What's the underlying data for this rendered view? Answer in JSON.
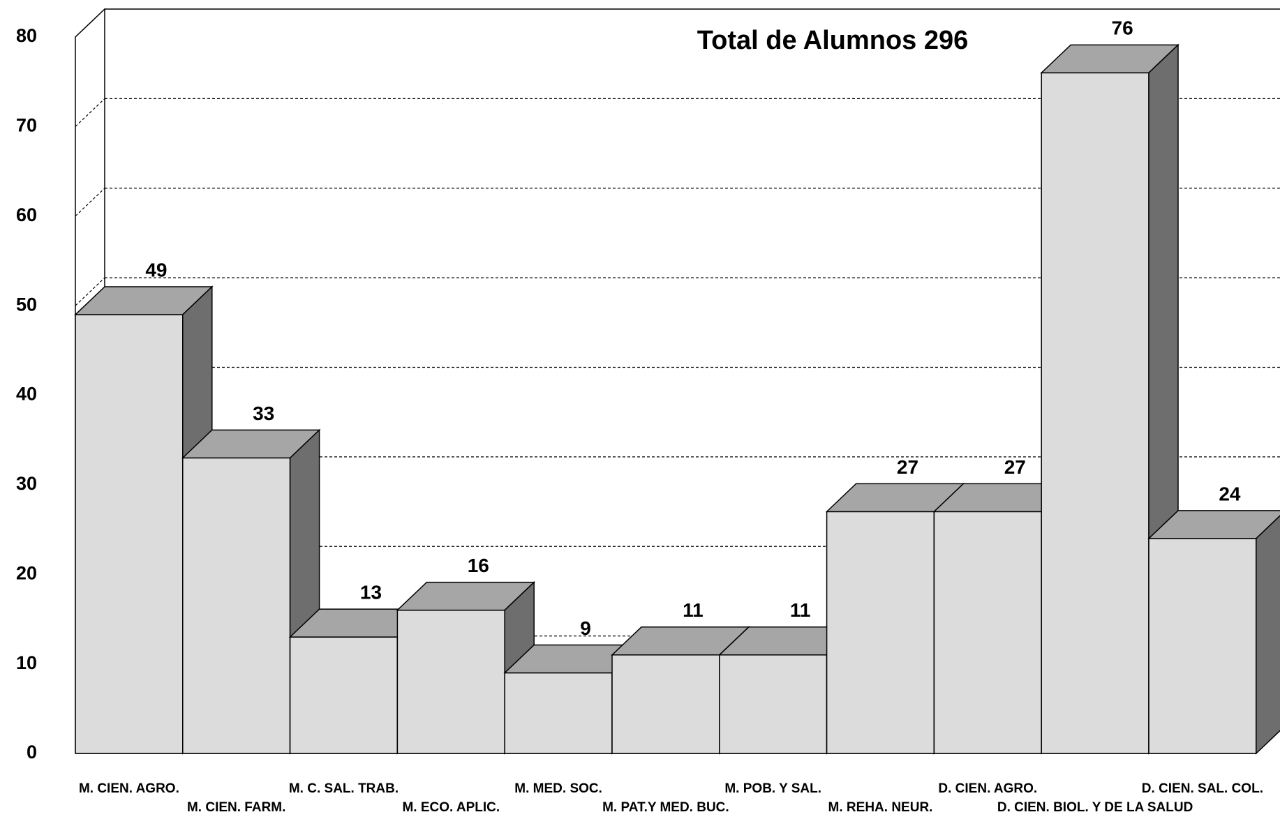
{
  "chart_data": {
    "type": "bar3d",
    "title": "Total de Alumnos 296",
    "categories": [
      "M. CIEN. AGRO.",
      "M. CIEN. FARM.",
      "M. C. SAL. TRAB.",
      "M. ECO. APLIC.",
      "M. MED. SOC.",
      "M. PAT.Y MED. BUC.",
      "M. POB. Y SAL.",
      "M. REHA. NEUR.",
      "D. CIEN. AGRO.",
      "D. CIEN. BIOL. Y DE LA SALUD",
      "D. CIEN. SAL. COL."
    ],
    "values": [
      49,
      33,
      13,
      16,
      9,
      11,
      11,
      27,
      27,
      76,
      24
    ],
    "colors": {
      "front": "#dcdcdc",
      "top": "#a6a6a6",
      "side": "#6e6e6e"
    },
    "ylim": [
      0,
      80
    ],
    "yticks": [
      0,
      10,
      20,
      30,
      40,
      50,
      60,
      70,
      80
    ],
    "grid": true
  }
}
